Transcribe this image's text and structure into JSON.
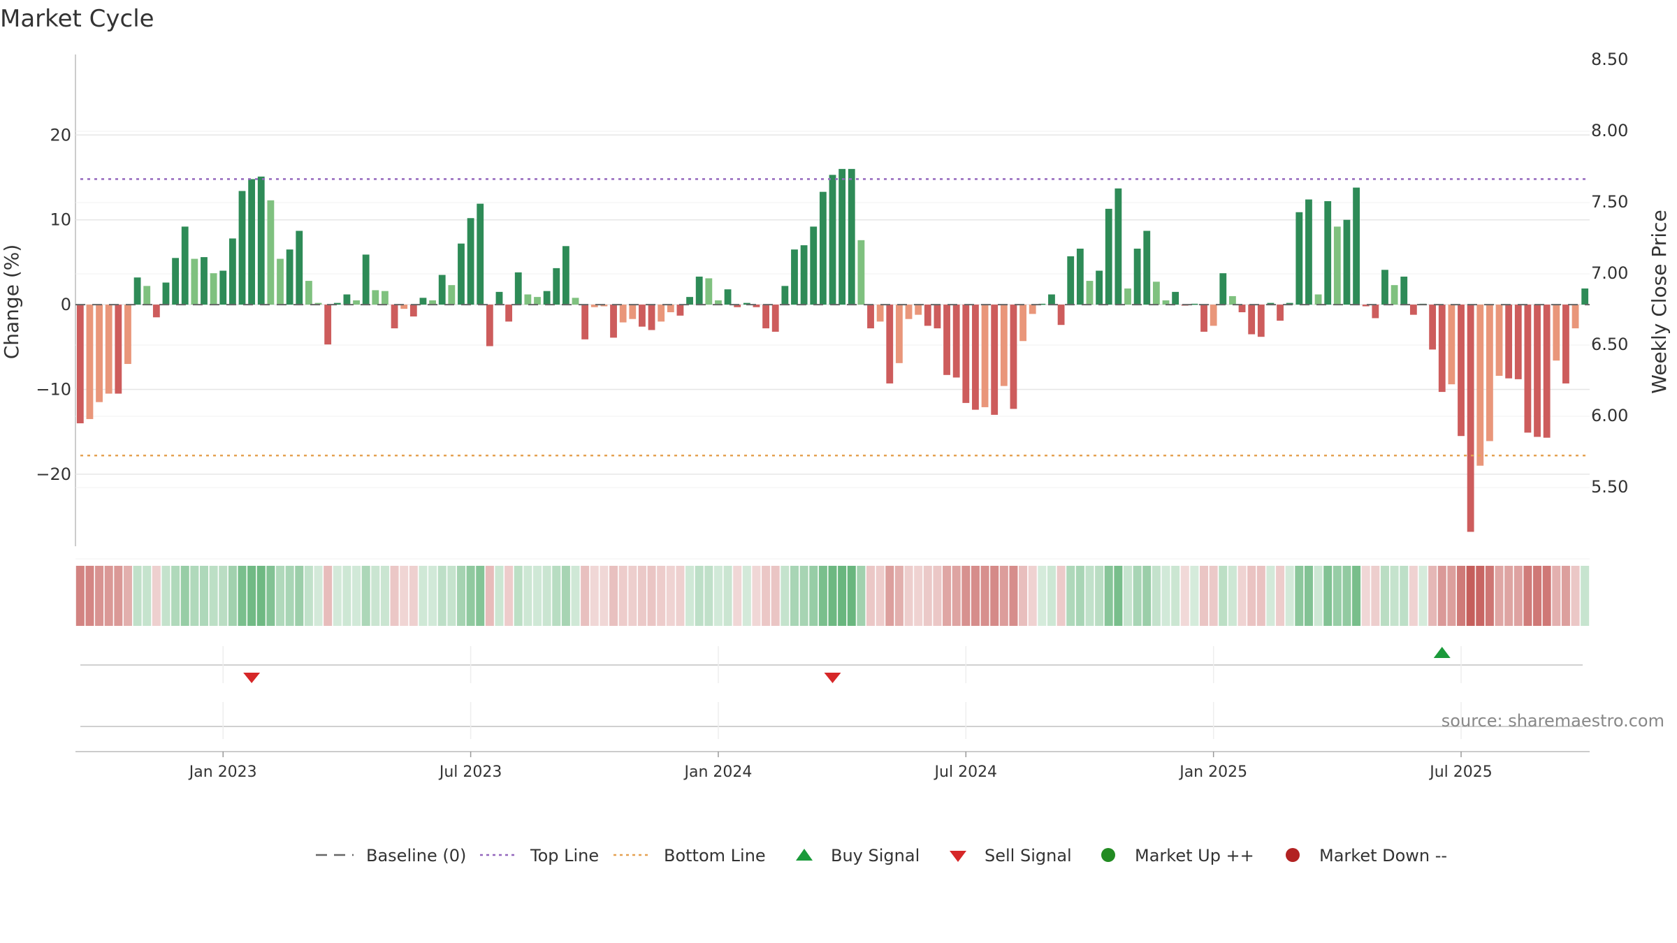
{
  "chart_data": {
    "type": "bar",
    "title": "Market Cycle",
    "ylabel_left": "Change (%)",
    "ylabel_right": "Weekly Close Price",
    "left_ticks": [
      20,
      10,
      0,
      -10,
      -20
    ],
    "left_tick_labels": [
      "20",
      "10",
      "0",
      "−10",
      "−20"
    ],
    "left_ylim": [
      -28.5,
      29.5
    ],
    "right_ticks": [
      "8.50",
      "8.00",
      "7.50",
      "7.00",
      "6.50",
      "6.00",
      "5.50"
    ],
    "x_tick_labels": [
      "Jan 2023",
      "Jul 2023",
      "Jan 2024",
      "Jul 2024",
      "Jan 2025",
      "Jul 2025"
    ],
    "x_tick_weeks": [
      15,
      41,
      67,
      93,
      119,
      145
    ],
    "top_line": 14.8,
    "bottom_line": -17.8,
    "values": [
      -14,
      -13.5,
      -11.5,
      -10.5,
      -10.5,
      -7,
      3.2,
      2.2,
      -1.5,
      2.6,
      5.5,
      9.2,
      5.4,
      5.6,
      3.7,
      4,
      7.8,
      13.4,
      14.8,
      15.1,
      12.3,
      5.4,
      6.5,
      8.7,
      2.8,
      0.2,
      -4.7,
      0.2,
      1.2,
      0.5,
      5.9,
      1.7,
      1.6,
      -2.8,
      -0.5,
      -1.4,
      0.8,
      0.5,
      3.5,
      2.3,
      7.2,
      10.2,
      11.9,
      -4.9,
      1.5,
      -2,
      3.8,
      1.2,
      0.9,
      1.6,
      4.3,
      6.9,
      0.8,
      -4.1,
      -0.3,
      -0.2,
      -3.9,
      -2.1,
      -1.7,
      -2.6,
      -3,
      -2,
      -0.9,
      -1.3,
      0.9,
      3.3,
      3.1,
      0.5,
      1.8,
      -0.3,
      0.2,
      -0.3,
      -2.8,
      -3.2,
      2.2,
      6.5,
      7,
      9.2,
      13.3,
      15.3,
      16,
      16,
      7.6,
      -2.8,
      -2,
      -9.3,
      -6.9,
      -1.7,
      -1.2,
      -2.5,
      -2.8,
      -8.3,
      -8.6,
      -11.6,
      -12.4,
      -12.1,
      -13,
      -9.6,
      -12.3,
      -4.3,
      -1.1,
      0.1,
      1.2,
      -2.4,
      5.7,
      6.6,
      2.8,
      4,
      11.3,
      13.7,
      1.9,
      6.6,
      8.7,
      2.7,
      0.5,
      1.5,
      -0.1,
      0.1,
      -3.2,
      -2.5,
      3.7,
      1,
      -0.9,
      -3.5,
      -3.8,
      0.2,
      -1.9,
      0.2,
      10.9,
      12.4,
      1.2,
      12.2,
      9.2,
      10,
      13.8,
      -0.2,
      -1.6,
      4.1,
      2.3,
      3.3,
      -1.2,
      0.1,
      -5.3,
      -10.3,
      -9.4,
      -15.5,
      -26.8,
      -19,
      -16.1,
      -8.4,
      -8.7,
      -8.8,
      -15.1,
      -15.6,
      -15.7,
      -6.6,
      -9.3,
      -2.8,
      1.9
    ],
    "sell_signal_weeks": [
      18,
      79
    ],
    "buy_signal_weeks": [
      143
    ],
    "colors": {
      "up_strong": "#2e8b57",
      "up_weak": "#7fc17f",
      "down_strong": "#cd5c5c",
      "down_weak": "#e9967a",
      "top_line": "#9467bd",
      "bottom_line": "#e5a152",
      "buy": "#1a9a3a",
      "sell": "#d62728",
      "market_up": "#228b22",
      "market_down": "#b22222",
      "baseline": "#666666"
    },
    "legend": [
      {
        "label": "Baseline (0)",
        "icon": "dash-line"
      },
      {
        "label": "Top Line",
        "icon": "dotted-purple-line"
      },
      {
        "label": "Bottom Line",
        "icon": "dotted-orange-line"
      },
      {
        "label": "Buy Signal",
        "icon": "triangle-up"
      },
      {
        "label": "Sell Signal",
        "icon": "triangle-down"
      },
      {
        "label": "Market Up ++",
        "icon": "circle-green"
      },
      {
        "label": "Market Down --",
        "icon": "circle-red"
      }
    ],
    "source": "source: sharemaestro.com",
    "grid": true
  }
}
